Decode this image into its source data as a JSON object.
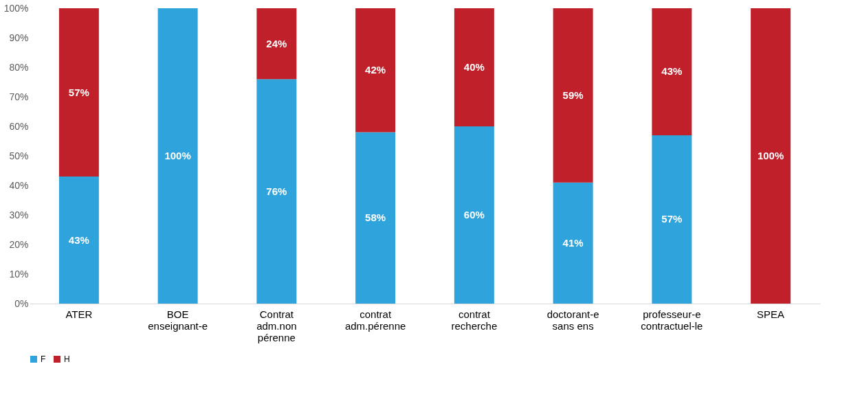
{
  "chart_data": {
    "type": "bar",
    "stacked": true,
    "categories": [
      "ATER",
      "BOE\nenseignant-e",
      "Contrat\nadm.non\npérenne",
      "contrat\nadm.pérenne",
      "contrat\nrecherche",
      "doctorant-e\nsans ens",
      "professeur-e\ncontractuel-le",
      "SPEA"
    ],
    "series": [
      {
        "name": "F",
        "color": "#2ea3dc",
        "values": [
          43,
          100,
          76,
          58,
          60,
          41,
          57,
          0
        ],
        "value_labels": [
          "43%",
          "100%",
          "76%",
          "58%",
          "60%",
          "41%",
          "57%",
          null
        ]
      },
      {
        "name": "H",
        "color": "#c0202a",
        "values": [
          57,
          0,
          24,
          42,
          40,
          59,
          43,
          100
        ],
        "value_labels": [
          "57%",
          null,
          "24%",
          "42%",
          "40%",
          "59%",
          "43%",
          "100%"
        ]
      }
    ],
    "ylim": [
      0,
      100
    ],
    "yticks": [
      {
        "value": 0,
        "label": "0%"
      },
      {
        "value": 10,
        "label": "10%"
      },
      {
        "value": 20,
        "label": "20%"
      },
      {
        "value": 30,
        "label": "30%"
      },
      {
        "value": 40,
        "label": "40%"
      },
      {
        "value": 50,
        "label": "50%"
      },
      {
        "value": 60,
        "label": "60%"
      },
      {
        "value": 70,
        "label": "70%"
      },
      {
        "value": 80,
        "label": "80%"
      },
      {
        "value": 90,
        "label": "90%"
      },
      {
        "value": 100,
        "label": "100%"
      }
    ],
    "grid": false,
    "legend": "bottom"
  }
}
